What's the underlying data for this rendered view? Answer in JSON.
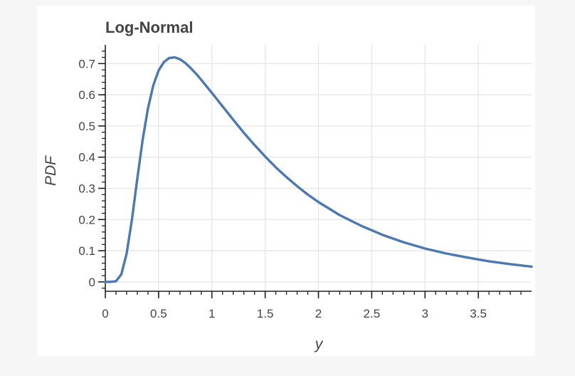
{
  "chart_data": {
    "type": "line",
    "title": "Log-Normal",
    "xlabel": "y",
    "ylabel": "PDF",
    "xlim": [
      0,
      4
    ],
    "ylim": [
      -0.03,
      0.76
    ],
    "grid": true,
    "legend": "none",
    "line_color": "#4c78b0",
    "grid_color": "#e5e5e5",
    "x_ticks": [
      {
        "value": 0,
        "label": "0"
      },
      {
        "value": 0.5,
        "label": "0.5"
      },
      {
        "value": 1,
        "label": "1"
      },
      {
        "value": 1.5,
        "label": "1.5"
      },
      {
        "value": 2,
        "label": "2"
      },
      {
        "value": 2.5,
        "label": "2.5"
      },
      {
        "value": 3,
        "label": "3"
      },
      {
        "value": 3.5,
        "label": "3.5"
      }
    ],
    "y_ticks": [
      {
        "value": 0,
        "label": "0"
      },
      {
        "value": 0.1,
        "label": "0.1"
      },
      {
        "value": 0.2,
        "label": "0.2"
      },
      {
        "value": 0.3,
        "label": "0.3"
      },
      {
        "value": 0.4,
        "label": "0.4"
      },
      {
        "value": 0.5,
        "label": "0.5"
      },
      {
        "value": 0.6,
        "label": "0.6"
      },
      {
        "value": 0.7,
        "label": "0.7"
      }
    ],
    "series": [
      {
        "x": [
          0,
          0.05,
          0.1,
          0.15,
          0.2,
          0.25,
          0.3,
          0.35,
          0.4,
          0.45,
          0.5,
          0.55,
          0.6,
          0.65,
          0.7,
          0.75,
          0.8,
          0.85,
          0.9,
          0.95,
          1.0,
          1.1,
          1.2,
          1.3,
          1.4,
          1.5,
          1.6,
          1.7,
          1.8,
          1.9,
          2.0,
          2.2,
          2.4,
          2.6,
          2.8,
          3.0,
          3.2,
          3.4,
          3.6,
          3.8,
          4.0
        ],
        "y": [
          0,
          0.0,
          0.002,
          0.024,
          0.091,
          0.201,
          0.331,
          0.455,
          0.556,
          0.63,
          0.678,
          0.705,
          0.718,
          0.72,
          0.714,
          0.702,
          0.686,
          0.668,
          0.648,
          0.627,
          0.606,
          0.563,
          0.52,
          0.478,
          0.439,
          0.402,
          0.367,
          0.336,
          0.307,
          0.28,
          0.256,
          0.214,
          0.18,
          0.151,
          0.127,
          0.107,
          0.091,
          0.078,
          0.066,
          0.057,
          0.049
        ]
      }
    ]
  }
}
